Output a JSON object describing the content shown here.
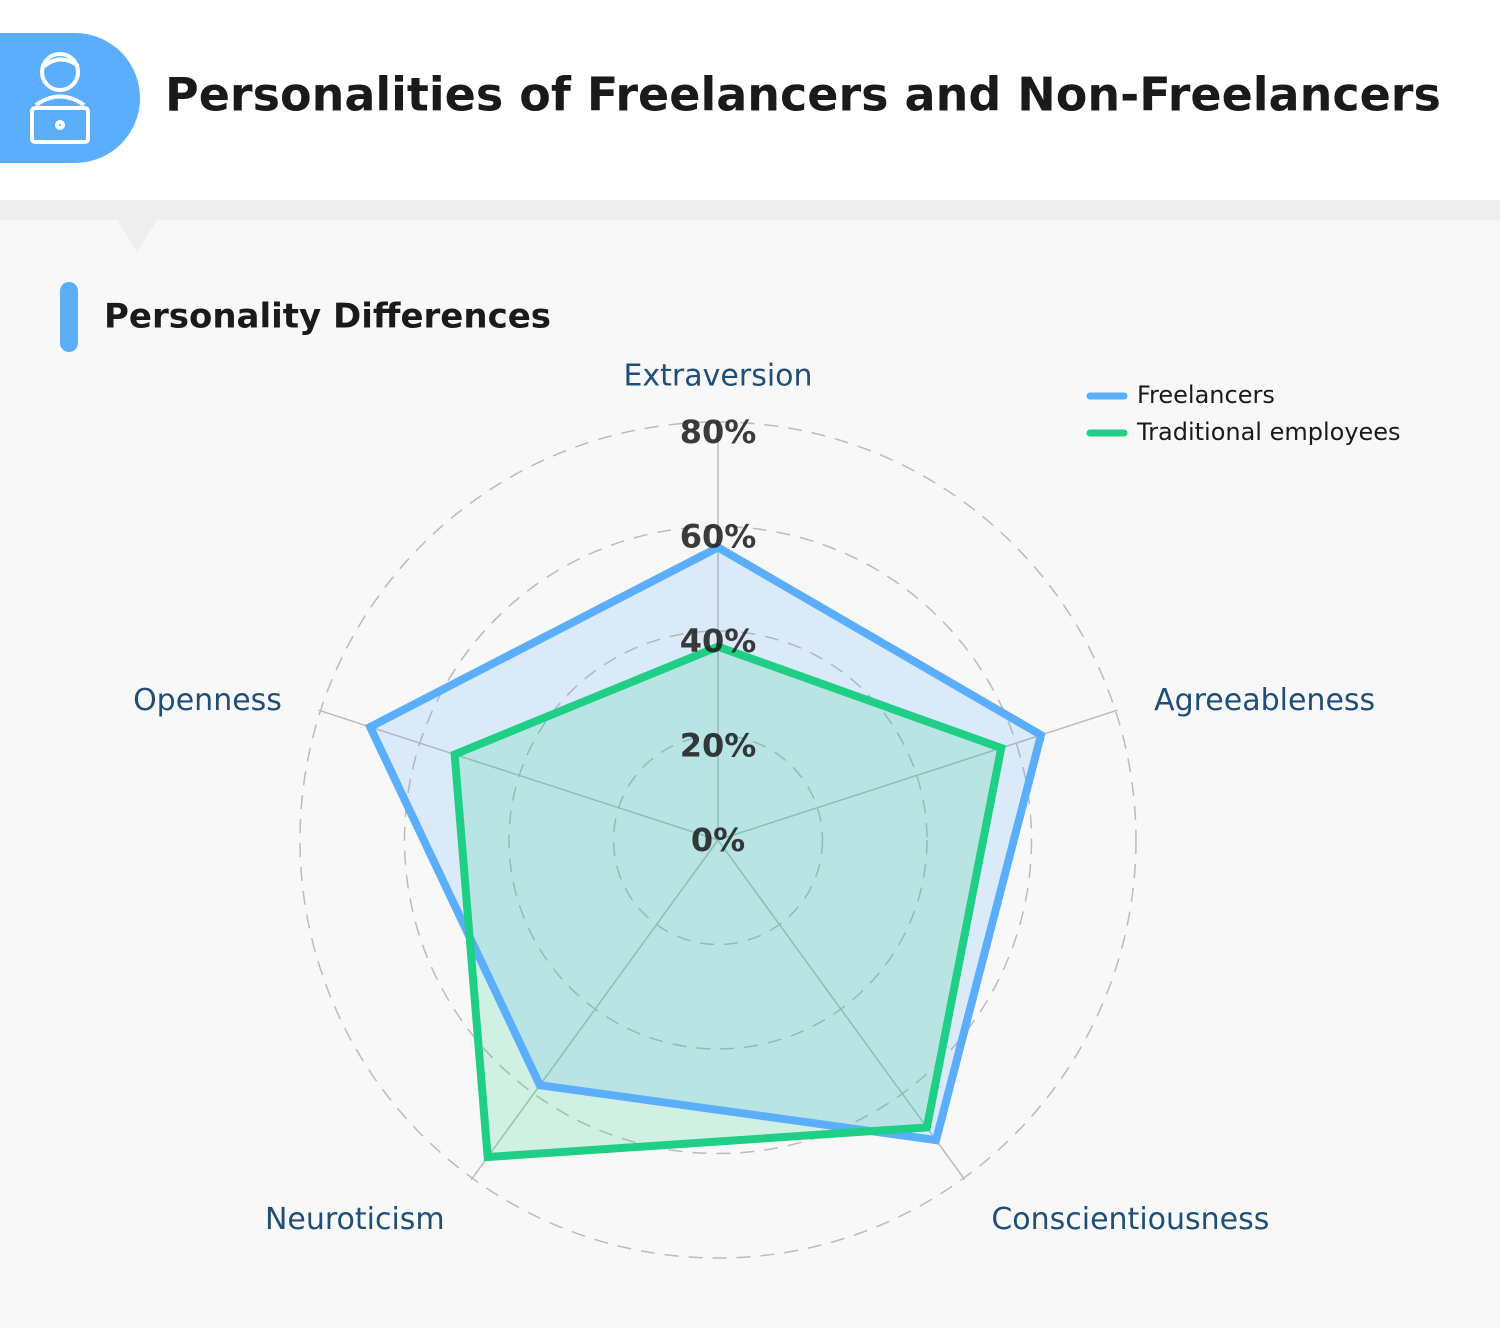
{
  "header": {
    "title": "Personalities of Freelancers and Non-Freelancers"
  },
  "chart_data": {
    "type": "radar",
    "title": "Personality Differences",
    "categories": [
      "Extraversion",
      "Agreeableness",
      "Conscientiousness",
      "Neuroticism",
      "Openness"
    ],
    "series": [
      {
        "name": "Freelancers",
        "color": "#5aaefc",
        "values": [
          56,
          65,
          71,
          58,
          70
        ]
      },
      {
        "name": "Traditional employees",
        "color": "#1ecf85",
        "values": [
          37,
          57,
          68,
          75,
          53
        ]
      }
    ],
    "rlim": [
      0,
      80
    ],
    "rticks": [
      {
        "value": 0,
        "label": "0%"
      },
      {
        "value": 20,
        "label": "20%"
      },
      {
        "value": 40,
        "label": "40%"
      },
      {
        "value": 60,
        "label": "60%"
      },
      {
        "value": 80,
        "label": "80%"
      }
    ],
    "grid": true,
    "legend": "top-right"
  }
}
